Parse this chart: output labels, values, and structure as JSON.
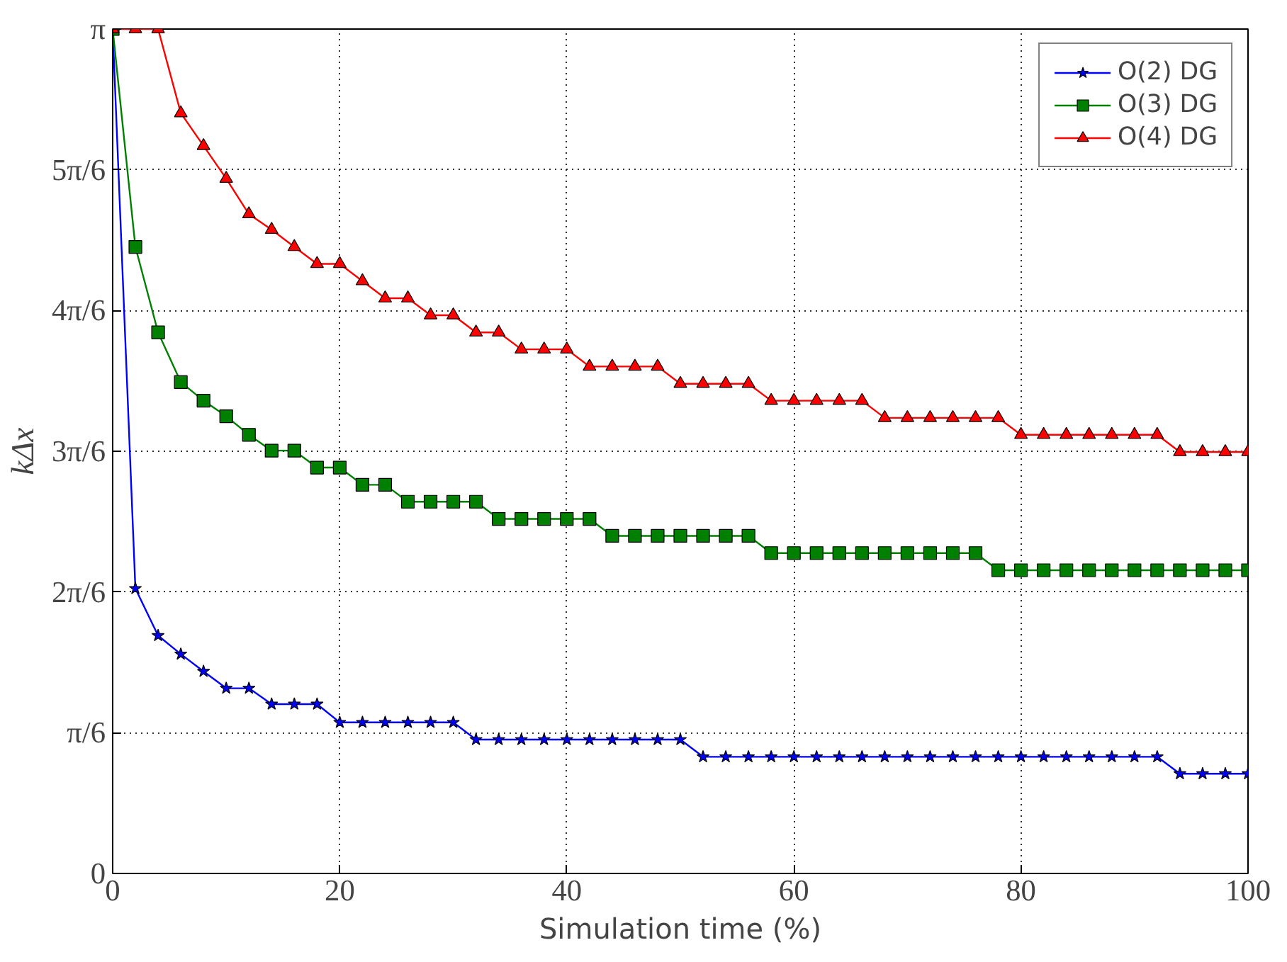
{
  "chart_data": {
    "type": "line",
    "xlabel": "Simulation time (%)",
    "ylabel": "kΔx",
    "x": [
      0,
      2,
      4,
      6,
      8,
      10,
      12,
      14,
      16,
      18,
      20,
      22,
      24,
      26,
      28,
      30,
      32,
      34,
      36,
      38,
      40,
      42,
      44,
      46,
      48,
      50,
      52,
      54,
      56,
      58,
      60,
      62,
      64,
      66,
      68,
      70,
      72,
      74,
      76,
      78,
      80,
      82,
      84,
      86,
      88,
      90,
      92,
      94,
      96,
      98,
      100
    ],
    "series": [
      {
        "name": "O(2) DG",
        "color": "#0000ff",
        "marker": "star",
        "values": [
          3.1416,
          1.06,
          0.885,
          0.816,
          0.752,
          0.689,
          0.689,
          0.63,
          0.63,
          0.63,
          0.562,
          0.562,
          0.562,
          0.562,
          0.562,
          0.562,
          0.498,
          0.498,
          0.498,
          0.498,
          0.498,
          0.498,
          0.498,
          0.498,
          0.498,
          0.498,
          0.434,
          0.434,
          0.434,
          0.434,
          0.434,
          0.434,
          0.434,
          0.434,
          0.434,
          0.434,
          0.434,
          0.434,
          0.434,
          0.434,
          0.434,
          0.434,
          0.434,
          0.434,
          0.434,
          0.434,
          0.434,
          0.371,
          0.371,
          0.371,
          0.371
        ]
      },
      {
        "name": "O(3) DG",
        "color": "#008000",
        "marker": "square",
        "values": [
          3.1416,
          2.331,
          2.013,
          1.828,
          1.759,
          1.701,
          1.632,
          1.573,
          1.573,
          1.51,
          1.51,
          1.446,
          1.446,
          1.383,
          1.383,
          1.383,
          1.383,
          1.319,
          1.319,
          1.319,
          1.319,
          1.319,
          1.256,
          1.256,
          1.256,
          1.256,
          1.256,
          1.256,
          1.256,
          1.192,
          1.192,
          1.192,
          1.192,
          1.192,
          1.192,
          1.192,
          1.192,
          1.192,
          1.192,
          1.128,
          1.128,
          1.128,
          1.128,
          1.128,
          1.128,
          1.128,
          1.128,
          1.128,
          1.128,
          1.128,
          1.128
        ]
      },
      {
        "name": "O(4) DG",
        "color": "#ff0000",
        "marker": "triangle",
        "values": [
          3.1416,
          3.1416,
          3.1416,
          2.829,
          2.707,
          2.585,
          2.453,
          2.395,
          2.331,
          2.268,
          2.268,
          2.204,
          2.14,
          2.14,
          2.077,
          2.077,
          2.013,
          2.013,
          1.95,
          1.95,
          1.95,
          1.886,
          1.886,
          1.886,
          1.886,
          1.822,
          1.822,
          1.822,
          1.822,
          1.759,
          1.759,
          1.759,
          1.759,
          1.759,
          1.695,
          1.695,
          1.695,
          1.695,
          1.695,
          1.695,
          1.632,
          1.632,
          1.632,
          1.632,
          1.632,
          1.632,
          1.632,
          1.568,
          1.568,
          1.568,
          1.568
        ]
      }
    ],
    "xlim": [
      0,
      100
    ],
    "xticks": [
      0,
      20,
      40,
      60,
      80,
      100
    ],
    "ylim": [
      0,
      3.1416
    ],
    "yticks": [
      0,
      {
        "value": 0.5236,
        "label": "π/6"
      },
      {
        "value": 1.0472,
        "label": "2π/6"
      },
      {
        "value": 1.5708,
        "label": "3π/6"
      },
      {
        "value": 2.0944,
        "label": "4π/6"
      },
      {
        "value": 2.618,
        "label": "5π/6"
      },
      {
        "value": 3.1416,
        "label": "π"
      }
    ],
    "grid": true,
    "legend": "top right",
    "line_style": "solid"
  }
}
